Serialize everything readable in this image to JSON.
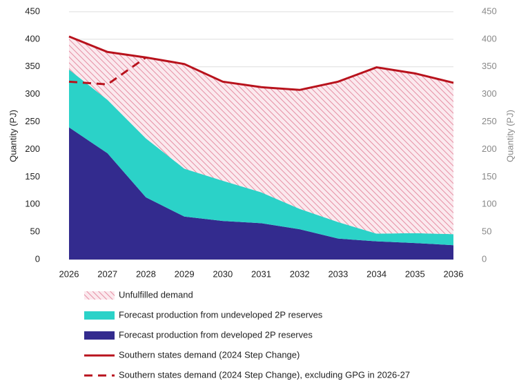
{
  "chart_data": {
    "type": "area",
    "y_label": "Quantity (PJ)",
    "y2_label": "Quantity (PJ)",
    "categories": [
      "2026",
      "2027",
      "2028",
      "2029",
      "2030",
      "2031",
      "2032",
      "2033",
      "2034",
      "2035",
      "2036"
    ],
    "ylim": [
      0,
      450
    ],
    "yticks": [
      0,
      50,
      100,
      150,
      200,
      250,
      300,
      350,
      400,
      450
    ],
    "y2lim": [
      0,
      450
    ],
    "y2ticks": [
      0,
      50,
      100,
      150,
      200,
      250,
      300,
      350,
      400,
      450
    ],
    "grid": true,
    "series": [
      {
        "name": "Unfulfilled demand",
        "kind": "area",
        "style": "hatch",
        "color": "#e58ea3",
        "values": [
          60,
          87,
          147,
          190,
          180,
          191,
          216,
          255,
          302,
          290,
          275
        ]
      },
      {
        "name": "Forecast production from undeveloped 2P reserves",
        "kind": "area",
        "style": "solid",
        "color": "#2bd2c8",
        "values": [
          105,
          97,
          107,
          87,
          73,
          56,
          37,
          30,
          14,
          18,
          20
        ]
      },
      {
        "name": "Forecast production from developed 2P reserves",
        "kind": "area",
        "style": "solid",
        "color": "#332b8e",
        "values": [
          240,
          193,
          113,
          78,
          70,
          66,
          55,
          38,
          33,
          30,
          26
        ]
      },
      {
        "name": "Southern states demand (2024 Step Change)",
        "kind": "line",
        "style": "solid",
        "color": "#b8121c",
        "values": [
          405,
          377,
          367,
          355,
          323,
          313,
          308,
          323,
          349,
          338,
          321
        ]
      },
      {
        "name": "Southern states demand (2024 Step Change), excluding GPG in 2026-27",
        "kind": "line",
        "style": "dashed",
        "color": "#b8121c",
        "values": [
          323,
          318,
          367,
          null,
          null,
          null,
          null,
          null,
          null,
          null,
          null
        ]
      }
    ]
  }
}
